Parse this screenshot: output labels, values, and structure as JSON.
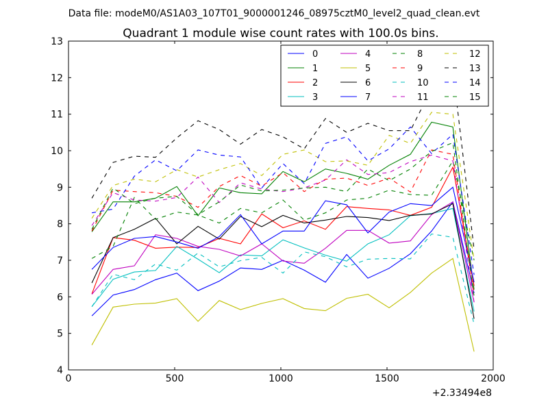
{
  "suptitle": "Data file: modeM0/AS1A03_107T01_9000001246_08975cztM0_level2_quad_clean.evt",
  "chart_data": {
    "type": "line",
    "title": "Quadrant 1 module wise count rates with 100.0s bins.",
    "xlabel": "",
    "ylabel": "",
    "x_offset_label": "+2.33494e8",
    "xlim": [
      0,
      2000
    ],
    "ylim": [
      4,
      13
    ],
    "x_ticks": [
      0,
      500,
      1000,
      1500,
      2000
    ],
    "y_ticks": [
      4,
      5,
      6,
      7,
      8,
      9,
      10,
      11,
      12,
      13
    ],
    "grid": false,
    "legend_position": "top-right",
    "x": [
      110,
      210,
      310,
      410,
      510,
      610,
      710,
      810,
      910,
      1010,
      1110,
      1210,
      1310,
      1410,
      1510,
      1610,
      1710,
      1810,
      1910
    ],
    "series": [
      {
        "name": "0",
        "color": "#0000ff",
        "style": "solid",
        "values": [
          5.48,
          6.05,
          6.2,
          6.47,
          6.65,
          6.17,
          6.43,
          6.79,
          6.75,
          7.0,
          6.73,
          6.4,
          7.16,
          6.51,
          6.78,
          7.18,
          7.8,
          8.6,
          6.1
        ]
      },
      {
        "name": "1",
        "color": "#008000",
        "style": "solid",
        "values": [
          7.78,
          8.6,
          8.6,
          8.7,
          9.02,
          8.22,
          8.98,
          8.85,
          8.82,
          9.43,
          9.15,
          9.5,
          9.38,
          9.22,
          9.6,
          9.9,
          10.78,
          10.65,
          6.2
        ]
      },
      {
        "name": "2",
        "color": "#ff0000",
        "style": "solid",
        "values": [
          6.08,
          7.62,
          7.55,
          7.33,
          7.36,
          7.35,
          7.6,
          7.45,
          8.27,
          7.89,
          8.08,
          7.85,
          8.47,
          8.42,
          8.38,
          8.23,
          8.45,
          9.55,
          6.3
        ]
      },
      {
        "name": "3",
        "color": "#00bfbf",
        "style": "solid",
        "values": [
          5.73,
          6.48,
          6.68,
          6.72,
          7.38,
          7.03,
          6.66,
          7.15,
          7.12,
          7.56,
          7.34,
          7.14,
          6.98,
          7.45,
          7.7,
          8.22,
          8.28,
          8.42,
          5.6
        ]
      },
      {
        "name": "4",
        "color": "#bf00bf",
        "style": "solid",
        "values": [
          6.07,
          6.75,
          6.85,
          7.7,
          7.6,
          7.38,
          7.3,
          7.12,
          7.45,
          6.98,
          6.92,
          7.33,
          7.82,
          7.82,
          7.47,
          7.53,
          8.25,
          8.6,
          5.85
        ]
      },
      {
        "name": "5",
        "color": "#bfbf00",
        "style": "solid",
        "values": [
          4.68,
          5.72,
          5.8,
          5.83,
          5.95,
          5.33,
          5.9,
          5.65,
          5.82,
          5.95,
          5.68,
          5.62,
          5.96,
          6.07,
          5.7,
          6.12,
          6.65,
          7.05,
          4.5
        ]
      },
      {
        "name": "6",
        "color": "#000000",
        "style": "solid",
        "values": [
          6.38,
          7.62,
          7.85,
          8.15,
          7.45,
          7.93,
          7.58,
          8.2,
          7.92,
          8.23,
          8.02,
          8.1,
          8.2,
          8.17,
          8.09,
          8.23,
          8.27,
          8.55,
          5.4
        ]
      },
      {
        "name": "7",
        "color": "#0000ff",
        "style": "solid",
        "values": [
          6.75,
          7.35,
          7.6,
          7.65,
          7.5,
          7.33,
          7.65,
          8.25,
          7.45,
          7.8,
          7.8,
          8.63,
          8.52,
          7.75,
          8.32,
          8.55,
          8.5,
          9.0,
          6.4
        ]
      },
      {
        "name": "8",
        "color": "#008000",
        "style": "dashed",
        "values": [
          7.05,
          7.38,
          8.72,
          8.12,
          8.32,
          8.24,
          8.02,
          8.42,
          8.3,
          8.65,
          8.1,
          8.3,
          8.65,
          8.7,
          8.92,
          8.8,
          8.78,
          9.72,
          7.0
        ]
      },
      {
        "name": "9",
        "color": "#ff0000",
        "style": "dashed",
        "values": [
          7.8,
          8.92,
          8.88,
          8.85,
          8.75,
          8.45,
          9.02,
          9.32,
          9.03,
          9.4,
          8.88,
          9.22,
          9.25,
          9.05,
          9.25,
          8.87,
          10.02,
          9.9,
          6.05
        ]
      },
      {
        "name": "10",
        "color": "#00bfbf",
        "style": "dashed",
        "values": [
          5.73,
          6.62,
          6.47,
          6.9,
          6.73,
          7.2,
          6.82,
          6.99,
          7.08,
          6.65,
          7.23,
          7.1,
          6.82,
          7.03,
          7.05,
          7.04,
          7.72,
          7.63,
          5.25
        ]
      },
      {
        "name": "11",
        "color": "#bf00bf",
        "style": "dashed",
        "values": [
          7.95,
          8.85,
          8.65,
          8.62,
          8.72,
          9.28,
          8.58,
          9.12,
          8.95,
          8.88,
          8.98,
          9.2,
          9.75,
          9.35,
          9.4,
          9.7,
          9.88,
          9.72,
          5.85
        ]
      },
      {
        "name": "12",
        "color": "#bfbf00",
        "style": "dashed",
        "values": [
          8.15,
          9.05,
          9.22,
          9.15,
          9.48,
          9.28,
          9.48,
          9.65,
          9.32,
          9.9,
          10.02,
          9.7,
          9.72,
          9.6,
          10.42,
          10.2,
          11.05,
          11.0,
          7.0
        ]
      },
      {
        "name": "13",
        "color": "#000000",
        "style": "dashed",
        "values": [
          8.7,
          9.68,
          9.85,
          9.82,
          10.35,
          10.82,
          10.58,
          10.18,
          10.58,
          10.38,
          10.05,
          10.88,
          10.5,
          10.75,
          10.55,
          10.55,
          11.7,
          12.22,
          7.3
        ]
      },
      {
        "name": "14",
        "color": "#0000ff",
        "style": "dashed",
        "values": [
          8.3,
          8.4,
          9.3,
          9.75,
          9.45,
          10.02,
          9.88,
          9.83,
          8.98,
          9.65,
          9.1,
          10.2,
          10.38,
          9.72,
          10.05,
          10.65,
          9.92,
          10.45,
          6.6
        ]
      },
      {
        "name": "15",
        "color": "#008000",
        "style": "dashed",
        "values": [
          7.85,
          8.98,
          8.55,
          8.7,
          8.75,
          8.25,
          8.6,
          9.06,
          8.9,
          8.92,
          8.98,
          9.0,
          8.88,
          9.5,
          9.18,
          9.5,
          9.98,
          10.22,
          6.0
        ]
      }
    ]
  }
}
